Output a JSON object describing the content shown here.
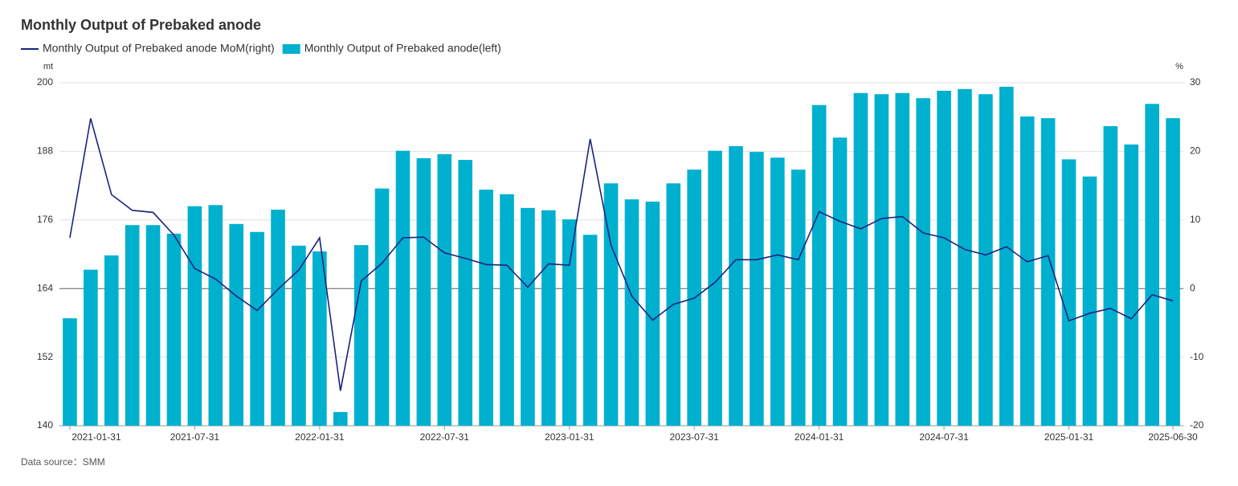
{
  "chart_data": {
    "type": "bar-line",
    "title": "Monthly Output of Prebaked anode",
    "source": "Data source：SMM",
    "ylabel": "mt",
    "y2label": "%",
    "categories": [
      "2021-01-31",
      null,
      null,
      null,
      null,
      null,
      "2021-07-31",
      null,
      null,
      null,
      null,
      null,
      "2022-01-31",
      null,
      null,
      null,
      null,
      null,
      "2022-07-31",
      null,
      null,
      null,
      null,
      null,
      "2023-01-31",
      null,
      null,
      null,
      null,
      null,
      "2023-07-31",
      null,
      null,
      null,
      null,
      null,
      "2024-01-31",
      null,
      null,
      null,
      null,
      null,
      "2024-07-31",
      null,
      null,
      null,
      null,
      null,
      "2025-01-31",
      null,
      null,
      null,
      null,
      "2025-06-30"
    ],
    "series": [
      {
        "name": "Monthly Output of Prebaked anode MoM(right)",
        "type": "line",
        "axis": "y2",
        "color": "#1a237e",
        "values": [
          7.4,
          24.8,
          13.7,
          11.4,
          11.1,
          7.8,
          2.9,
          1.4,
          -1.1,
          -3.2,
          -0.1,
          2.7,
          7.4,
          -14.9,
          1.1,
          3.7,
          7.4,
          7.5,
          5.2,
          4.4,
          3.5,
          3.4,
          0.2,
          3.6,
          3.4,
          21.8,
          6.3,
          -1.1,
          -4.6,
          -2.3,
          -1.4,
          0.9,
          4.2,
          4.2,
          4.9,
          4.2,
          11.2,
          9.8,
          8.7,
          10.2,
          10.5,
          8.1,
          7.4,
          5.7,
          4.9,
          6.1,
          3.9,
          4.8,
          -4.7,
          -3.6,
          -2.9,
          -4.4,
          -0.9,
          -1.8
        ]
      },
      {
        "name": "Monthly Output of Prebaked anode(left)",
        "type": "bar",
        "axis": "y",
        "color": "#00b0cf",
        "values": [
          158.8,
          167.3,
          169.8,
          175.1,
          175.1,
          173.6,
          178.4,
          178.6,
          175.3,
          173.9,
          177.8,
          171.5,
          170.5,
          142.4,
          171.6,
          181.5,
          188.1,
          186.8,
          187.5,
          186.5,
          181.3,
          180.5,
          178.1,
          177.7,
          176.1,
          173.4,
          182.4,
          179.6,
          179.2,
          182.4,
          184.8,
          188.1,
          188.9,
          187.9,
          186.9,
          184.8,
          196.1,
          190.4,
          198.2,
          198.0,
          198.2,
          197.3,
          198.6,
          198.9,
          198.0,
          199.3,
          194.1,
          193.8,
          186.6,
          183.6,
          192.4,
          189.2,
          196.3,
          193.8
        ]
      }
    ],
    "ylim": [
      140,
      200
    ],
    "yticks": [
      140,
      152,
      164,
      176,
      188,
      200
    ],
    "y2lim": [
      -20,
      30
    ],
    "y2ticks": [
      -20,
      -10,
      0,
      10,
      20,
      30
    ],
    "grid": true
  }
}
